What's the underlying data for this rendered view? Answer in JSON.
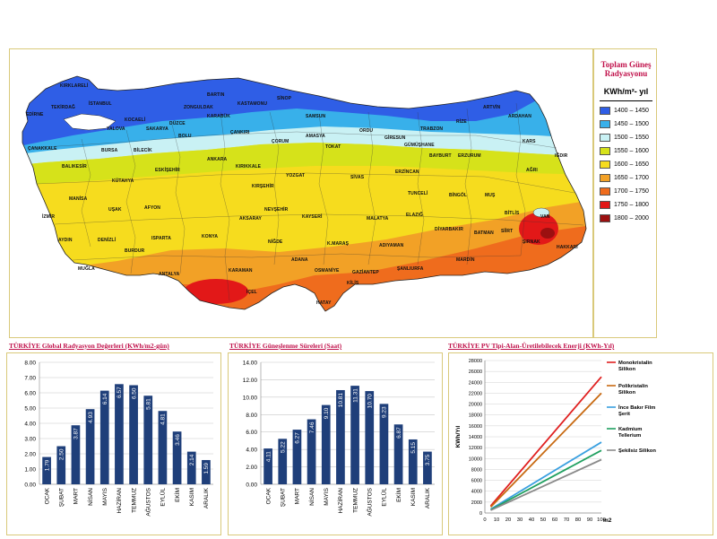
{
  "legend": {
    "title": "Toplam Güneş Radyasyonu",
    "unit": "KWh/m²- yıl",
    "classes": [
      {
        "label": "1400 – 1450",
        "color": "#2f5ee6"
      },
      {
        "label": "1450 – 1500",
        "color": "#38b0ea"
      },
      {
        "label": "1500 – 1550",
        "color": "#c9f1f4"
      },
      {
        "label": "1550 – 1600",
        "color": "#d6e21a"
      },
      {
        "label": "1600 – 1650",
        "color": "#f6dc1e"
      },
      {
        "label": "1650 – 1700",
        "color": "#f2a126"
      },
      {
        "label": "1700 – 1750",
        "color": "#ef6c1d"
      },
      {
        "label": "1750 – 1800",
        "color": "#e21818"
      },
      {
        "label": "1800 – 2000",
        "color": "#9b1010"
      }
    ]
  },
  "map": {
    "cities": [
      "KIRKLARELİ",
      "EDİRNE",
      "TEKİRDAĞ",
      "İSTANBUL",
      "ÇANAKKALE",
      "YALOVA",
      "KOCAELİ",
      "SAKARYA",
      "DÜZCE",
      "BOLU",
      "ZONGULDAK",
      "BARTIN",
      "KARABÜK",
      "KASTAMONU",
      "SİNOP",
      "SAMSUN",
      "ÇANKIRI",
      "ÇORUM",
      "AMASYA",
      "TOKAT",
      "ORDU",
      "GİRESUN",
      "TRABZON",
      "RİZE",
      "ARTVİN",
      "ARDAHAN",
      "KARS",
      "IĞDIR",
      "AĞRI",
      "GÜMÜŞHANE",
      "BAYBURT",
      "ERZURUM",
      "ERZİNCAN",
      "SİVAS",
      "YOZGAT",
      "KIRIKKALE",
      "ANKARA",
      "KIRŞEHİR",
      "NEVŞEHİR",
      "KAYSERİ",
      "AKSARAY",
      "NİĞDE",
      "KONYA",
      "ESKİŞEHİR",
      "BİLECİK",
      "BURSA",
      "BALIKESİR",
      "KÜTAHYA",
      "MANİSA",
      "İZMİR",
      "UŞAK",
      "AFYON",
      "AYDIN",
      "DENİZLİ",
      "MUĞLA",
      "BURDUR",
      "ISPARTA",
      "ANTALYA",
      "KARAMAN",
      "İÇEL",
      "ADANA",
      "OSMANİYE",
      "HATAY",
      "KİLİS",
      "GAZİANTEP",
      "K.MARAŞ",
      "ADIYAMAN",
      "MALATYA",
      "ELAZIĞ",
      "TUNCELİ",
      "BİNGÖL",
      "MUŞ",
      "BİTLİS",
      "VAN",
      "HAKKARİ",
      "ŞIRNAK",
      "SİİRT",
      "BATMAN",
      "MARDİN",
      "DİYARBAKIR",
      "ŞANLIURFA"
    ]
  },
  "charts": [
    {
      "title": "TÜRKİYE Global Radyasyon Değerleri (KWh/m2-gün)",
      "chart_data": {
        "type": "bar",
        "categories": [
          "OCAK",
          "ŞUBAT",
          "MART",
          "NİSAN",
          "MAYIS",
          "HAZİRAN",
          "TEMMUZ",
          "AĞUSTOS",
          "EYLÜL",
          "EKİM",
          "KASIM",
          "ARALIK"
        ],
        "values": [
          1.79,
          2.5,
          3.87,
          4.93,
          6.14,
          6.57,
          6.5,
          5.81,
          4.81,
          3.46,
          2.14,
          1.59
        ],
        "value_labels": [
          "1.79",
          "2.50",
          "3.87",
          "4.93",
          "6.14",
          "6.57",
          "6.50",
          "5.81",
          "4.81",
          "3.46",
          "2.14",
          "1.59"
        ],
        "ylim": [
          0,
          8
        ],
        "yticks": [
          "0.00",
          "1.00",
          "2.00",
          "3.00",
          "4.00",
          "5.00",
          "6.00",
          "7.00",
          "8.00"
        ],
        "bar_color": "#1f3f7a",
        "grid": true
      }
    },
    {
      "title": "TÜRKİYE Güneşlenme Süreleri (Saat)",
      "chart_data": {
        "type": "bar",
        "categories": [
          "OCAK",
          "ŞUBAT",
          "MART",
          "NİSAN",
          "MAYIS",
          "HAZİRAN",
          "TEMMUZ",
          "AĞUSTOS",
          "EYLÜL",
          "EKİM",
          "KASIM",
          "ARALIK"
        ],
        "values": [
          4.11,
          5.22,
          6.27,
          7.46,
          9.1,
          10.81,
          11.31,
          10.7,
          9.23,
          6.87,
          5.15,
          3.75
        ],
        "value_labels": [
          "4.11",
          "5.22",
          "6.27",
          "7.46",
          "9.10",
          "10.81",
          "11.31",
          "10.70",
          "9.23",
          "6.87",
          "5.15",
          "3.75"
        ],
        "ylim": [
          0,
          14
        ],
        "yticks": [
          "0.00",
          "2.00",
          "4.00",
          "6.00",
          "8.00",
          "10.00",
          "12.00",
          "14.00"
        ],
        "bar_color": "#1f3f7a",
        "grid": true
      }
    },
    {
      "title": "TÜRKİYE PV Tipi-Alan-Üretilebilecek Enerji (KWh-Yıl)",
      "chart_data": {
        "type": "line",
        "ylabel": "KWh/Yıl",
        "xlabel": "m2",
        "xlim": [
          0,
          100
        ],
        "ylim": [
          0,
          28000
        ],
        "xticks": [
          "0",
          "10",
          "20",
          "30",
          "40",
          "50",
          "60",
          "70",
          "80",
          "90",
          "100"
        ],
        "yticks": [
          "0",
          "2000",
          "4000",
          "6000",
          "8000",
          "10000",
          "12000",
          "14000",
          "16000",
          "18000",
          "20000",
          "22000",
          "24000",
          "26000",
          "28000"
        ],
        "series": [
          {
            "name": "Monokristalin Silikon",
            "color": "#e02020",
            "x": [
              5,
              100
            ],
            "y": [
              1300,
              25000
            ]
          },
          {
            "name": "Polikristalin Silikon",
            "color": "#c86a12",
            "x": [
              5,
              100
            ],
            "y": [
              1100,
              22000
            ]
          },
          {
            "name": "İnce Bakır Film Şerit",
            "color": "#3aa0e0",
            "x": [
              5,
              100
            ],
            "y": [
              700,
              13000
            ]
          },
          {
            "name": "Kadmium Tellerium",
            "color": "#20a060",
            "x": [
              5,
              100
            ],
            "y": [
              600,
              11500
            ]
          },
          {
            "name": "Şekilsiz Silikon",
            "color": "#8a8a8a",
            "x": [
              5,
              100
            ],
            "y": [
              500,
              9800
            ]
          }
        ]
      }
    }
  ]
}
